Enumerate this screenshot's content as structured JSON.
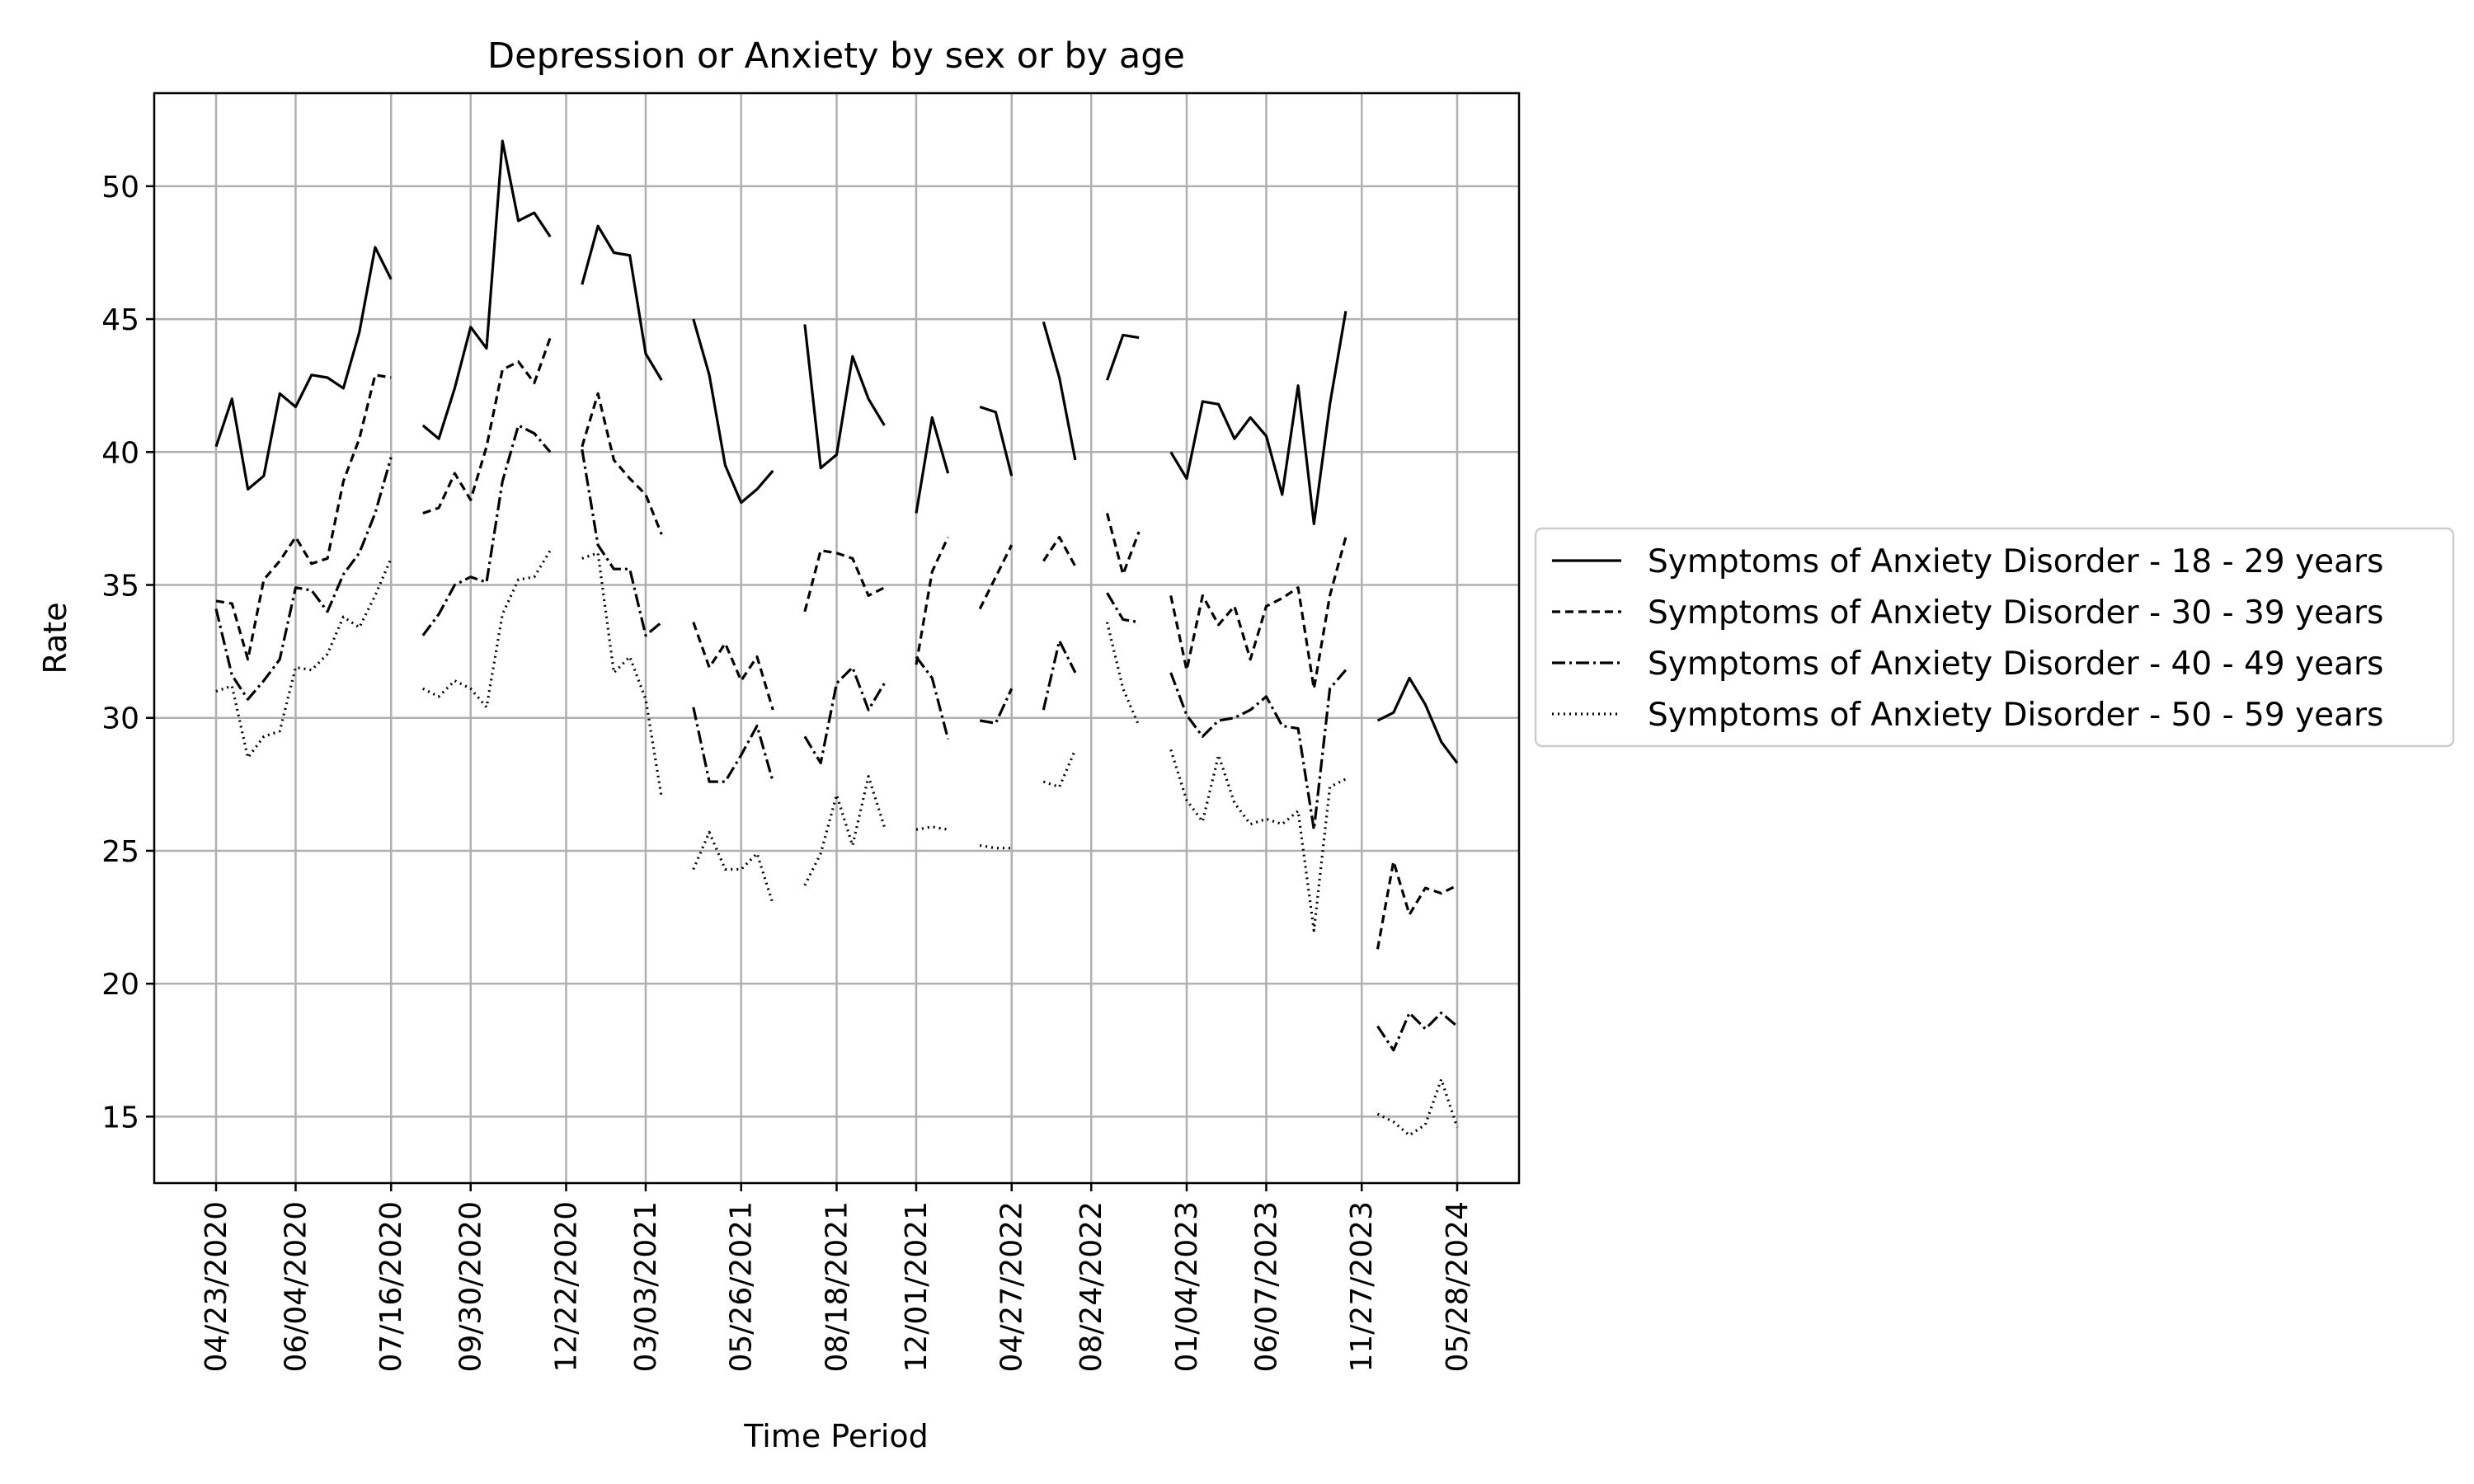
{
  "chart_data": {
    "type": "line",
    "title": "Depression or Anxiety by sex or by age",
    "xlabel": "Time Period",
    "ylabel": "Rate",
    "ylim": [
      12.5,
      53.5
    ],
    "yticks": [
      15,
      20,
      25,
      30,
      35,
      40,
      45,
      50
    ],
    "grid": true,
    "legend_position": "right",
    "xticks": [
      {
        "label": "04/23/2020",
        "index": 0
      },
      {
        "label": "06/04/2020",
        "index": 5
      },
      {
        "label": "07/16/2020",
        "index": 11
      },
      {
        "label": "09/30/2020",
        "index": 16
      },
      {
        "label": "12/22/2020",
        "index": 22
      },
      {
        "label": "03/03/2021",
        "index": 27
      },
      {
        "label": "05/26/2021",
        "index": 33
      },
      {
        "label": "08/18/2021",
        "index": 39
      },
      {
        "label": "12/01/2021",
        "index": 44
      },
      {
        "label": "04/27/2022",
        "index": 50
      },
      {
        "label": "08/24/2022",
        "index": 55
      },
      {
        "label": "01/04/2023",
        "index": 61
      },
      {
        "label": "06/07/2023",
        "index": 66
      },
      {
        "label": "11/27/2023",
        "index": 72
      },
      {
        "label": "05/28/2024",
        "index": 78
      }
    ],
    "x_count": 79,
    "series": [
      {
        "name": "Symptoms of Anxiety Disorder - 18 - 29 years",
        "dash": "",
        "values": [
          40.2,
          42.0,
          38.6,
          39.1,
          42.2,
          41.7,
          42.9,
          42.8,
          42.4,
          44.5,
          47.7,
          46.5,
          null,
          41.0,
          40.5,
          42.4,
          44.7,
          43.9,
          51.7,
          48.7,
          49.0,
          48.1,
          null,
          46.3,
          48.5,
          47.5,
          47.4,
          43.7,
          42.7,
          null,
          45.0,
          42.9,
          39.5,
          38.1,
          38.6,
          39.3,
          null,
          44.8,
          39.4,
          39.9,
          43.6,
          42.0,
          41.0,
          null,
          37.7,
          41.3,
          39.2,
          null,
          41.7,
          41.5,
          39.1,
          null,
          44.9,
          42.8,
          39.7,
          null,
          42.7,
          44.4,
          44.3,
          null,
          40.0,
          39.0,
          41.9,
          41.8,
          40.5,
          41.3,
          40.6,
          38.4,
          42.5,
          37.3,
          41.8,
          45.3,
          null,
          29.9,
          30.2,
          31.5,
          30.5,
          29.1,
          28.3
        ]
      },
      {
        "name": "Symptoms of Anxiety Disorder - 30 - 39 years",
        "dash": "10,6",
        "values": [
          34.4,
          34.3,
          32.2,
          35.2,
          35.9,
          36.8,
          35.8,
          36.0,
          38.9,
          40.5,
          42.9,
          42.8,
          null,
          37.7,
          37.9,
          39.2,
          38.2,
          40.2,
          43.1,
          43.4,
          42.6,
          44.3,
          null,
          40.2,
          42.2,
          39.7,
          39.0,
          38.4,
          36.9,
          null,
          33.6,
          31.9,
          32.8,
          31.4,
          32.3,
          30.3,
          null,
          34.0,
          36.3,
          36.2,
          36.0,
          34.6,
          34.9,
          null,
          32.0,
          35.5,
          36.8,
          null,
          34.1,
          35.3,
          36.5,
          null,
          35.9,
          36.8,
          35.7,
          null,
          37.7,
          35.4,
          37.0,
          null,
          34.6,
          31.8,
          34.6,
          33.5,
          34.2,
          32.2,
          34.2,
          34.5,
          34.9,
          31.1,
          34.6,
          36.8,
          null,
          21.3,
          24.6,
          22.6,
          23.6,
          23.4,
          23.7
        ]
      },
      {
        "name": "Symptoms of Anxiety Disorder - 40 - 49 years",
        "dash": "16,5,3,5",
        "values": [
          34.1,
          31.6,
          30.7,
          31.4,
          32.2,
          34.9,
          34.8,
          34.0,
          35.4,
          36.2,
          37.7,
          39.8,
          null,
          33.1,
          33.9,
          35.0,
          35.3,
          35.1,
          38.9,
          41.0,
          40.7,
          40.0,
          null,
          40.1,
          36.5,
          35.6,
          35.6,
          33.1,
          33.6,
          null,
          30.4,
          27.6,
          27.6,
          28.6,
          29.7,
          27.6,
          null,
          29.3,
          28.3,
          31.3,
          31.9,
          30.3,
          31.3,
          null,
          32.3,
          31.5,
          29.2,
          null,
          29.9,
          29.8,
          31.1,
          null,
          30.3,
          32.9,
          31.7,
          null,
          34.7,
          33.7,
          33.6,
          null,
          31.7,
          30.1,
          29.3,
          29.9,
          30.0,
          30.3,
          30.8,
          29.7,
          29.6,
          25.8,
          31.1,
          31.8,
          null,
          18.4,
          17.5,
          18.9,
          18.3,
          18.9,
          18.4
        ]
      },
      {
        "name": "Symptoms of Anxiety Disorder - 50 - 59 years",
        "dash": "2,5",
        "values": [
          31.0,
          31.2,
          28.5,
          29.3,
          29.5,
          31.9,
          31.8,
          32.4,
          33.8,
          33.4,
          34.6,
          36.0,
          null,
          31.1,
          30.8,
          31.4,
          31.1,
          30.4,
          33.9,
          35.2,
          35.3,
          36.3,
          null,
          36.0,
          36.2,
          31.7,
          32.3,
          30.7,
          27.0,
          null,
          24.3,
          25.7,
          24.3,
          24.3,
          24.9,
          23.0,
          null,
          23.7,
          24.9,
          27.1,
          25.2,
          27.8,
          25.9,
          null,
          25.8,
          25.9,
          25.8,
          null,
          25.2,
          25.1,
          25.1,
          null,
          27.6,
          27.4,
          28.8,
          null,
          33.6,
          31.1,
          29.7,
          null,
          28.8,
          26.9,
          26.1,
          28.6,
          26.8,
          26.0,
          26.2,
          26.0,
          26.5,
          22.0,
          27.4,
          27.7,
          null,
          15.1,
          14.8,
          14.3,
          14.7,
          16.4,
          14.6
        ]
      }
    ]
  }
}
